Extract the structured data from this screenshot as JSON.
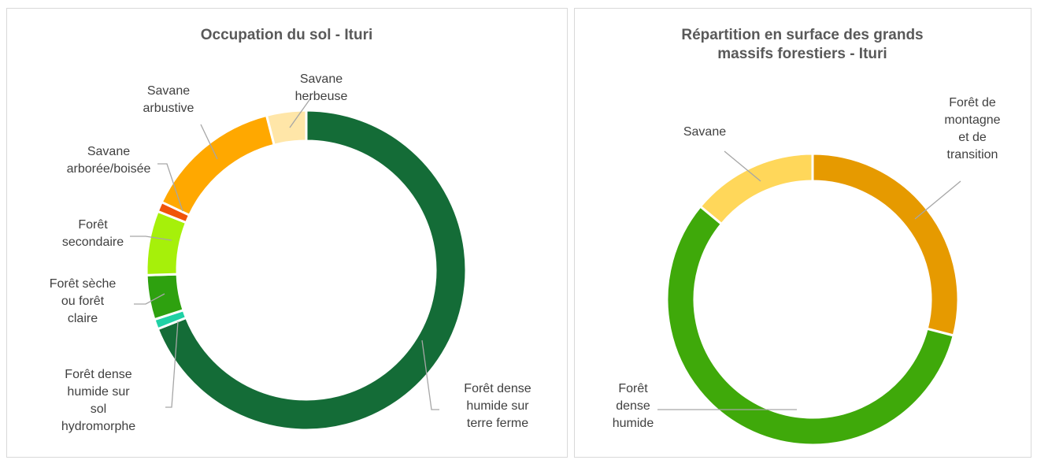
{
  "chart_data": [
    {
      "type": "donut",
      "title": "Occupation du sol - Ituri",
      "categories": [
        "Forêt dense humide sur terre ferme",
        "Forêt dense humide sur sol hydromorphe",
        "Forêt sèche ou forêt claire",
        "Forêt secondaire",
        "Savane arborée/boisée",
        "Savane arbustive",
        "Savane herbeuse"
      ],
      "values": [
        69,
        1,
        4.5,
        6.5,
        1,
        14,
        4
      ],
      "colors": [
        "#146c37",
        "#1fd1a5",
        "#2ea10f",
        "#a6f00a",
        "#f0540a",
        "#ffa800",
        "#ffe6a8"
      ]
    },
    {
      "type": "donut",
      "title": "Répartition en surface des grands massifs forestiers - Ituri",
      "categories": [
        "Forêt de montagne et de transition",
        "Forêt dense humide",
        "Savane"
      ],
      "values": [
        29,
        57,
        14
      ],
      "colors": [
        "#e69a00",
        "#3fa90a",
        "#ffd75a"
      ]
    }
  ]
}
